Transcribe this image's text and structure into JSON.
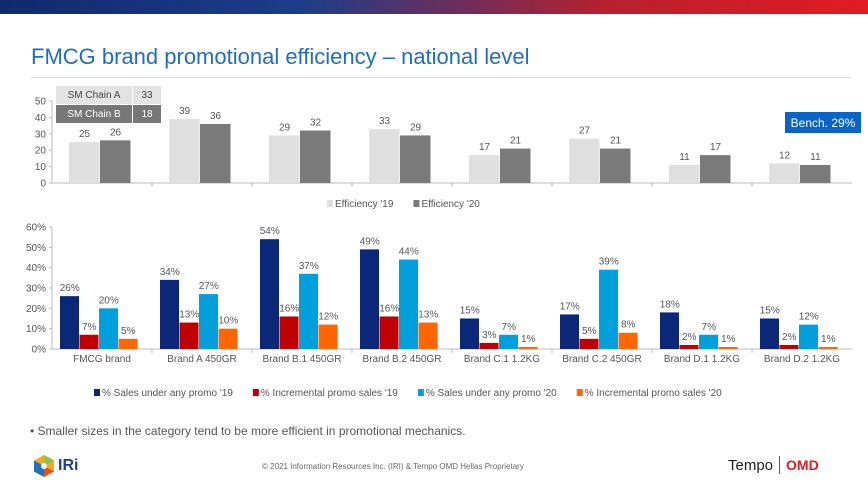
{
  "header": {
    "title": "FMCG brand promotional efficiency – national level"
  },
  "sm_table": [
    {
      "label": "SM Chain A",
      "value": "33"
    },
    {
      "label": "SM Chain B",
      "value": "18"
    }
  ],
  "benchmark": "Bench. 29%",
  "chart_data": [
    {
      "type": "bar",
      "categories": [
        "FMCG brand",
        "Brand A 450GR",
        "Brand B.1 450GR",
        "Brand B.2 450GR",
        "Brand C.1 1.2KG",
        "Brand C.2 450GR",
        "Brand D.1 1.2KG",
        "Brand D.2 1.2KG"
      ],
      "ylim": [
        0,
        50
      ],
      "yticks": [
        "0",
        "10",
        "20",
        "30",
        "40",
        "50"
      ],
      "legend": "bottom",
      "series": [
        {
          "name": "Efficiency '19",
          "color": "#e0e0e0",
          "values": [
            25,
            39,
            29,
            33,
            17,
            27,
            11,
            12
          ]
        },
        {
          "name": "Efficiency '20",
          "color": "#7a7a7a",
          "values": [
            26,
            36,
            32,
            29,
            21,
            21,
            17,
            11
          ]
        }
      ]
    },
    {
      "type": "bar",
      "categories": [
        "FMCG brand",
        "Brand A  450GR",
        "Brand B.1  450GR",
        "Brand B.2  450GR",
        "Brand C.1  1.2KG",
        "Brand C.2  450GR",
        "Brand D.1  1.2KG",
        "Brand D.2  1.2KG"
      ],
      "ylim": [
        0,
        60
      ],
      "yticks": [
        "0%",
        "10%",
        "20%",
        "30%",
        "40%",
        "50%",
        "60%"
      ],
      "legend": "bottom",
      "series": [
        {
          "name": "% Sales under any promo '19",
          "color": "#0b2878",
          "values": [
            26,
            34,
            54,
            49,
            15,
            17,
            18,
            15
          ]
        },
        {
          "name": "% Incremental promo sales '19",
          "color": "#c00000",
          "values": [
            7,
            13,
            16,
            16,
            3,
            5,
            2,
            2
          ]
        },
        {
          "name": "% Sales under any promo '20",
          "color": "#00a0dc",
          "values": [
            20,
            27,
            37,
            44,
            7,
            39,
            7,
            12
          ]
        },
        {
          "name": "% Incremental promo sales '20",
          "color": "#ff6600",
          "values": [
            5,
            10,
            12,
            13,
            1,
            8,
            1,
            1
          ]
        }
      ]
    }
  ],
  "footer": {
    "note": "Smaller sizes in the category tend to be more efficient in promotional mechanics.",
    "copyright": "© 2021 Information Resources Inc. (IRI) & Tempo OMD Hellas Proprietary",
    "iri_logo": "IRi",
    "tempo_logo": "Tempo",
    "omd_logo": "OMD"
  }
}
